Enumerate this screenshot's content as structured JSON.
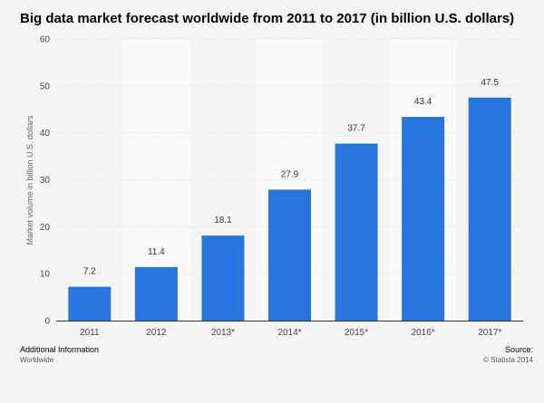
{
  "chart_data": {
    "type": "bar",
    "title": "Big data market forecast worldwide from 2011 to 2017 (in billion U.S. dollars)",
    "ylabel": "Market volume in billion U.S. dollars",
    "xlabel": "",
    "categories": [
      "2011",
      "2012",
      "2013*",
      "2014*",
      "2015*",
      "2016*",
      "2017*"
    ],
    "values": [
      7.2,
      11.4,
      18.1,
      27.9,
      37.7,
      43.4,
      47.5
    ],
    "value_labels": [
      "7.2",
      "11.4",
      "18.1",
      "27.9",
      "37.7",
      "43.4",
      "47.5"
    ],
    "ylim": [
      0,
      60
    ],
    "yticks": [
      "0",
      "10",
      "20",
      "30",
      "40",
      "50",
      "60"
    ],
    "grid": true,
    "bar_color": "#2876dd"
  },
  "footer": {
    "additional_info_label": "Additional Information",
    "additional_info_value": "Worldwide",
    "source_label": "Source:",
    "source_value": "© Statista 2014"
  }
}
